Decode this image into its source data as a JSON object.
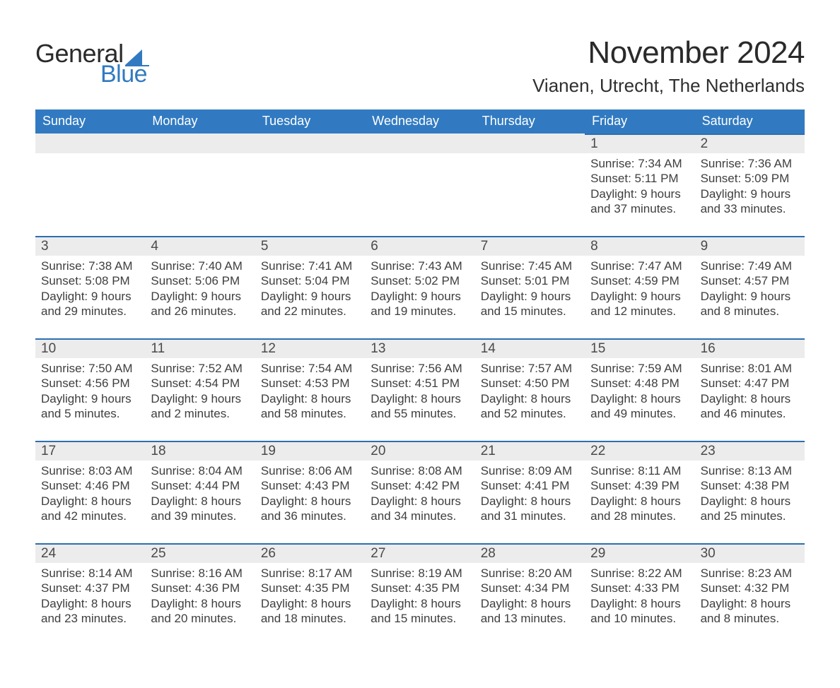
{
  "colors": {
    "brand_blue": "#317ac1",
    "brand_blue_dark": "#1c5a9a",
    "row_alt_bg": "#ececec",
    "row_border": "#2d6fb0",
    "text_dark": "#343434",
    "background": "#ffffff"
  },
  "typography": {
    "month_title_fontsize_pt": 33,
    "location_fontsize_pt": 20,
    "dow_fontsize_pt": 14,
    "daynum_fontsize_pt": 14,
    "body_fontsize_pt": 13,
    "font_family": "Helvetica Neue"
  },
  "logo": {
    "word1": "General",
    "word2": "Blue"
  },
  "header": {
    "month_title": "November 2024",
    "location": "Vianen, Utrecht, The Netherlands"
  },
  "calendar": {
    "type": "table",
    "columns": [
      "Sunday",
      "Monday",
      "Tuesday",
      "Wednesday",
      "Thursday",
      "Friday",
      "Saturday"
    ],
    "labels": {
      "sunrise": "Sunrise:",
      "sunset": "Sunset:",
      "daylight": "Daylight:"
    },
    "weeks": [
      [
        null,
        null,
        null,
        null,
        null,
        {
          "day": "1",
          "sunrise": "7:34 AM",
          "sunset": "5:11 PM",
          "daylight_l1": "9 hours",
          "daylight_l2": "and 37 minutes."
        },
        {
          "day": "2",
          "sunrise": "7:36 AM",
          "sunset": "5:09 PM",
          "daylight_l1": "9 hours",
          "daylight_l2": "and 33 minutes."
        }
      ],
      [
        {
          "day": "3",
          "sunrise": "7:38 AM",
          "sunset": "5:08 PM",
          "daylight_l1": "9 hours",
          "daylight_l2": "and 29 minutes."
        },
        {
          "day": "4",
          "sunrise": "7:40 AM",
          "sunset": "5:06 PM",
          "daylight_l1": "9 hours",
          "daylight_l2": "and 26 minutes."
        },
        {
          "day": "5",
          "sunrise": "7:41 AM",
          "sunset": "5:04 PM",
          "daylight_l1": "9 hours",
          "daylight_l2": "and 22 minutes."
        },
        {
          "day": "6",
          "sunrise": "7:43 AM",
          "sunset": "5:02 PM",
          "daylight_l1": "9 hours",
          "daylight_l2": "and 19 minutes."
        },
        {
          "day": "7",
          "sunrise": "7:45 AM",
          "sunset": "5:01 PM",
          "daylight_l1": "9 hours",
          "daylight_l2": "and 15 minutes."
        },
        {
          "day": "8",
          "sunrise": "7:47 AM",
          "sunset": "4:59 PM",
          "daylight_l1": "9 hours",
          "daylight_l2": "and 12 minutes."
        },
        {
          "day": "9",
          "sunrise": "7:49 AM",
          "sunset": "4:57 PM",
          "daylight_l1": "9 hours",
          "daylight_l2": "and 8 minutes."
        }
      ],
      [
        {
          "day": "10",
          "sunrise": "7:50 AM",
          "sunset": "4:56 PM",
          "daylight_l1": "9 hours",
          "daylight_l2": "and 5 minutes."
        },
        {
          "day": "11",
          "sunrise": "7:52 AM",
          "sunset": "4:54 PM",
          "daylight_l1": "9 hours",
          "daylight_l2": "and 2 minutes."
        },
        {
          "day": "12",
          "sunrise": "7:54 AM",
          "sunset": "4:53 PM",
          "daylight_l1": "8 hours",
          "daylight_l2": "and 58 minutes."
        },
        {
          "day": "13",
          "sunrise": "7:56 AM",
          "sunset": "4:51 PM",
          "daylight_l1": "8 hours",
          "daylight_l2": "and 55 minutes."
        },
        {
          "day": "14",
          "sunrise": "7:57 AM",
          "sunset": "4:50 PM",
          "daylight_l1": "8 hours",
          "daylight_l2": "and 52 minutes."
        },
        {
          "day": "15",
          "sunrise": "7:59 AM",
          "sunset": "4:48 PM",
          "daylight_l1": "8 hours",
          "daylight_l2": "and 49 minutes."
        },
        {
          "day": "16",
          "sunrise": "8:01 AM",
          "sunset": "4:47 PM",
          "daylight_l1": "8 hours",
          "daylight_l2": "and 46 minutes."
        }
      ],
      [
        {
          "day": "17",
          "sunrise": "8:03 AM",
          "sunset": "4:46 PM",
          "daylight_l1": "8 hours",
          "daylight_l2": "and 42 minutes."
        },
        {
          "day": "18",
          "sunrise": "8:04 AM",
          "sunset": "4:44 PM",
          "daylight_l1": "8 hours",
          "daylight_l2": "and 39 minutes."
        },
        {
          "day": "19",
          "sunrise": "8:06 AM",
          "sunset": "4:43 PM",
          "daylight_l1": "8 hours",
          "daylight_l2": "and 36 minutes."
        },
        {
          "day": "20",
          "sunrise": "8:08 AM",
          "sunset": "4:42 PM",
          "daylight_l1": "8 hours",
          "daylight_l2": "and 34 minutes."
        },
        {
          "day": "21",
          "sunrise": "8:09 AM",
          "sunset": "4:41 PM",
          "daylight_l1": "8 hours",
          "daylight_l2": "and 31 minutes."
        },
        {
          "day": "22",
          "sunrise": "8:11 AM",
          "sunset": "4:39 PM",
          "daylight_l1": "8 hours",
          "daylight_l2": "and 28 minutes."
        },
        {
          "day": "23",
          "sunrise": "8:13 AM",
          "sunset": "4:38 PM",
          "daylight_l1": "8 hours",
          "daylight_l2": "and 25 minutes."
        }
      ],
      [
        {
          "day": "24",
          "sunrise": "8:14 AM",
          "sunset": "4:37 PM",
          "daylight_l1": "8 hours",
          "daylight_l2": "and 23 minutes."
        },
        {
          "day": "25",
          "sunrise": "8:16 AM",
          "sunset": "4:36 PM",
          "daylight_l1": "8 hours",
          "daylight_l2": "and 20 minutes."
        },
        {
          "day": "26",
          "sunrise": "8:17 AM",
          "sunset": "4:35 PM",
          "daylight_l1": "8 hours",
          "daylight_l2": "and 18 minutes."
        },
        {
          "day": "27",
          "sunrise": "8:19 AM",
          "sunset": "4:35 PM",
          "daylight_l1": "8 hours",
          "daylight_l2": "and 15 minutes."
        },
        {
          "day": "28",
          "sunrise": "8:20 AM",
          "sunset": "4:34 PM",
          "daylight_l1": "8 hours",
          "daylight_l2": "and 13 minutes."
        },
        {
          "day": "29",
          "sunrise": "8:22 AM",
          "sunset": "4:33 PM",
          "daylight_l1": "8 hours",
          "daylight_l2": "and 10 minutes."
        },
        {
          "day": "30",
          "sunrise": "8:23 AM",
          "sunset": "4:32 PM",
          "daylight_l1": "8 hours",
          "daylight_l2": "and 8 minutes."
        }
      ]
    ]
  }
}
